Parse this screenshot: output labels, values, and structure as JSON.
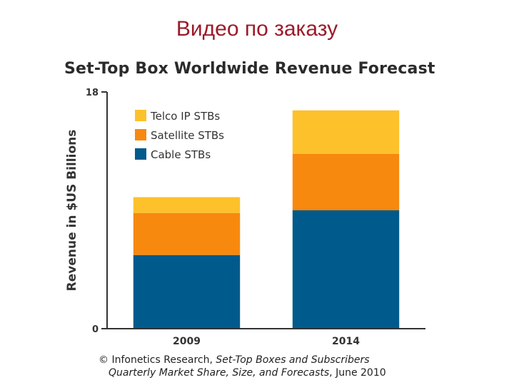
{
  "slide": {
    "title": "Видео по заказу"
  },
  "source": {
    "prefix": "© Infonetics Research, ",
    "publication_part1": "Set-Top Boxes and Subscribers",
    "publication_part2": "Quarterly Market Share, Size, and Forecasts",
    "suffix": ", June 2010"
  },
  "colors": {
    "cable": "#005a8c",
    "satellite": "#f7890f",
    "telco": "#fdc12b",
    "axis": "#333333",
    "title_red": "#9b1b2a"
  },
  "chart_data": {
    "type": "bar",
    "stacked": true,
    "title": "Set-Top Box Worldwide Revenue Forecast",
    "xlabel": "",
    "ylabel": "Revenue in $US Billions",
    "ylim": [
      0,
      18
    ],
    "yticks": [
      0,
      18
    ],
    "categories": [
      "2009",
      "2014"
    ],
    "legend_position": "top-left",
    "series": [
      {
        "name": "Cable STBs",
        "color": "#005a8c",
        "values": [
          5.6,
          9.0
        ]
      },
      {
        "name": "Satellite STBs",
        "color": "#f7890f",
        "values": [
          3.2,
          4.3
        ]
      },
      {
        "name": "Telco IP STBs",
        "color": "#fdc12b",
        "values": [
          1.2,
          3.3
        ]
      }
    ],
    "legend_order": [
      "Telco IP STBs",
      "Satellite STBs",
      "Cable STBs"
    ]
  }
}
